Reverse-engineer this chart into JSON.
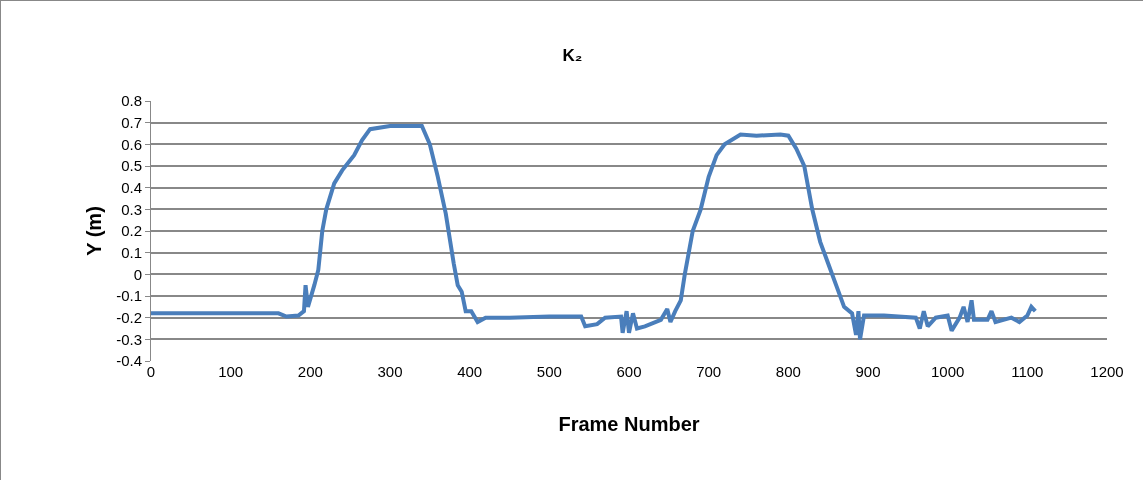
{
  "chart_data": {
    "type": "line",
    "title": "K₂",
    "xlabel": "Frame Number",
    "ylabel": "Y (m)",
    "x": [
      0,
      100,
      160,
      170,
      185,
      192,
      194,
      197,
      205,
      210,
      215,
      220,
      230,
      240,
      255,
      265,
      275,
      300,
      330,
      340,
      350,
      360,
      370,
      380,
      385,
      390,
      395,
      402,
      410,
      420,
      450,
      500,
      540,
      545,
      560,
      570,
      590,
      592,
      597,
      600,
      605,
      610,
      620,
      640,
      648,
      652,
      658,
      665,
      670,
      680,
      690,
      700,
      710,
      720,
      740,
      760,
      790,
      800,
      810,
      820,
      830,
      840,
      850,
      860,
      870,
      880,
      885,
      888,
      890,
      895,
      920,
      960,
      965,
      970,
      975,
      985,
      1000,
      1005,
      1015,
      1020,
      1025,
      1030,
      1033,
      1050,
      1055,
      1060,
      1080,
      1090,
      1100,
      1105,
      1110
    ],
    "series": [
      {
        "color": "#4a7ebb",
        "values": [
          -0.18,
          -0.18,
          -0.18,
          -0.195,
          -0.19,
          -0.17,
          -0.05,
          -0.15,
          -0.05,
          0.02,
          0.2,
          0.3,
          0.42,
          0.48,
          0.55,
          0.62,
          0.67,
          0.685,
          0.685,
          0.685,
          0.6,
          0.45,
          0.28,
          0.05,
          -0.05,
          -0.08,
          -0.17,
          -0.17,
          -0.22,
          -0.2,
          -0.2,
          -0.195,
          -0.195,
          -0.24,
          -0.23,
          -0.2,
          -0.195,
          -0.27,
          -0.17,
          -0.27,
          -0.18,
          -0.25,
          -0.24,
          -0.21,
          -0.16,
          -0.22,
          -0.17,
          -0.12,
          0,
          0.2,
          0.3,
          0.45,
          0.55,
          0.6,
          0.645,
          0.64,
          0.645,
          0.64,
          0.58,
          0.5,
          0.3,
          0.15,
          0.05,
          -0.05,
          -0.15,
          -0.18,
          -0.28,
          -0.17,
          -0.3,
          -0.19,
          -0.19,
          -0.2,
          -0.25,
          -0.17,
          -0.24,
          -0.2,
          -0.19,
          -0.26,
          -0.2,
          -0.15,
          -0.22,
          -0.12,
          -0.21,
          -0.21,
          -0.17,
          -0.22,
          -0.2,
          -0.22,
          -0.19,
          -0.15,
          -0.17
        ]
      }
    ],
    "xlim": [
      0,
      1200
    ],
    "xticks": [
      0,
      100,
      200,
      300,
      400,
      500,
      600,
      700,
      800,
      900,
      1000,
      1100,
      1200
    ],
    "ylim": [
      -0.4,
      0.8
    ],
    "yticks": [
      -0.4,
      -0.3,
      -0.2,
      -0.1,
      0,
      0.1,
      0.2,
      0.3,
      0.4,
      0.5,
      0.6,
      0.7,
      0.8
    ],
    "grid": "y",
    "marker": "none",
    "line_style": "solid"
  }
}
